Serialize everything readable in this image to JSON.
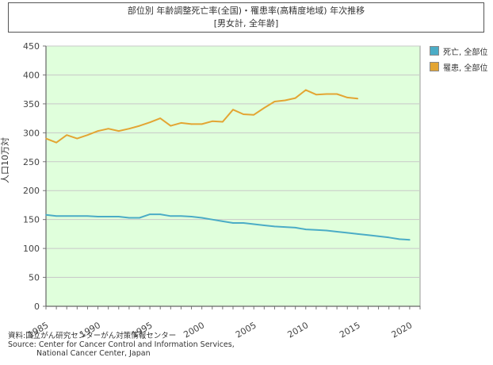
{
  "header": {
    "title_line1": "部位別 年齢調整死亡率(全国)・罹患率(高精度地域) 年次推移",
    "title_line2": "[男女計, 全年齢]"
  },
  "source": {
    "line1": "資料:国立がん研究センターがん対策情報センター",
    "line2": "Source: Center for Cancer Control and Information Services,",
    "line3": "National Cancer Center, Japan"
  },
  "chart_data": {
    "type": "line",
    "title": "部位別 年齢調整死亡率(全国)・罹患率(高精度地域) 年次推移",
    "subtitle": "[男女計, 全年齢]",
    "xlabel": "",
    "ylabel": "人口10万対",
    "xlim": [
      1985,
      2021
    ],
    "ylim": [
      0,
      450
    ],
    "x_ticks": [
      1985,
      1990,
      1995,
      2000,
      2005,
      2010,
      2015,
      2020
    ],
    "y_ticks": [
      0,
      50,
      100,
      150,
      200,
      250,
      300,
      350,
      400,
      450
    ],
    "grid": true,
    "legend_position": "right",
    "background_color": "#e0ffdc",
    "series": [
      {
        "name": "死亡, 全部位",
        "color": "#4bacc6",
        "x": [
          1985,
          1986,
          1987,
          1988,
          1989,
          1990,
          1991,
          1992,
          1993,
          1994,
          1995,
          1996,
          1997,
          1998,
          1999,
          2000,
          2001,
          2002,
          2003,
          2004,
          2005,
          2006,
          2007,
          2008,
          2009,
          2010,
          2011,
          2012,
          2013,
          2014,
          2015,
          2016,
          2017,
          2018,
          2019,
          2020
        ],
        "y": [
          158,
          156,
          156,
          156,
          156,
          155,
          155,
          155,
          153,
          153,
          159,
          159,
          156,
          156,
          155,
          153,
          150,
          147,
          144,
          144,
          142,
          140,
          138,
          137,
          136,
          133,
          132,
          131,
          129,
          127,
          125,
          123,
          121,
          119,
          116,
          115
        ]
      },
      {
        "name": "罹患, 全部位",
        "color": "#e3a533",
        "x": [
          1985,
          1986,
          1987,
          1988,
          1989,
          1990,
          1991,
          1992,
          1993,
          1994,
          1995,
          1996,
          1997,
          1998,
          1999,
          2000,
          2001,
          2002,
          2003,
          2004,
          2005,
          2006,
          2007,
          2008,
          2009,
          2010,
          2011,
          2012,
          2013,
          2014,
          2015
        ],
        "y": [
          290,
          283,
          296,
          290,
          296,
          303,
          307,
          303,
          307,
          312,
          318,
          325,
          312,
          317,
          315,
          315,
          320,
          319,
          340,
          332,
          331,
          343,
          354,
          356,
          360,
          374,
          366,
          367,
          367,
          361,
          359
        ]
      }
    ]
  }
}
